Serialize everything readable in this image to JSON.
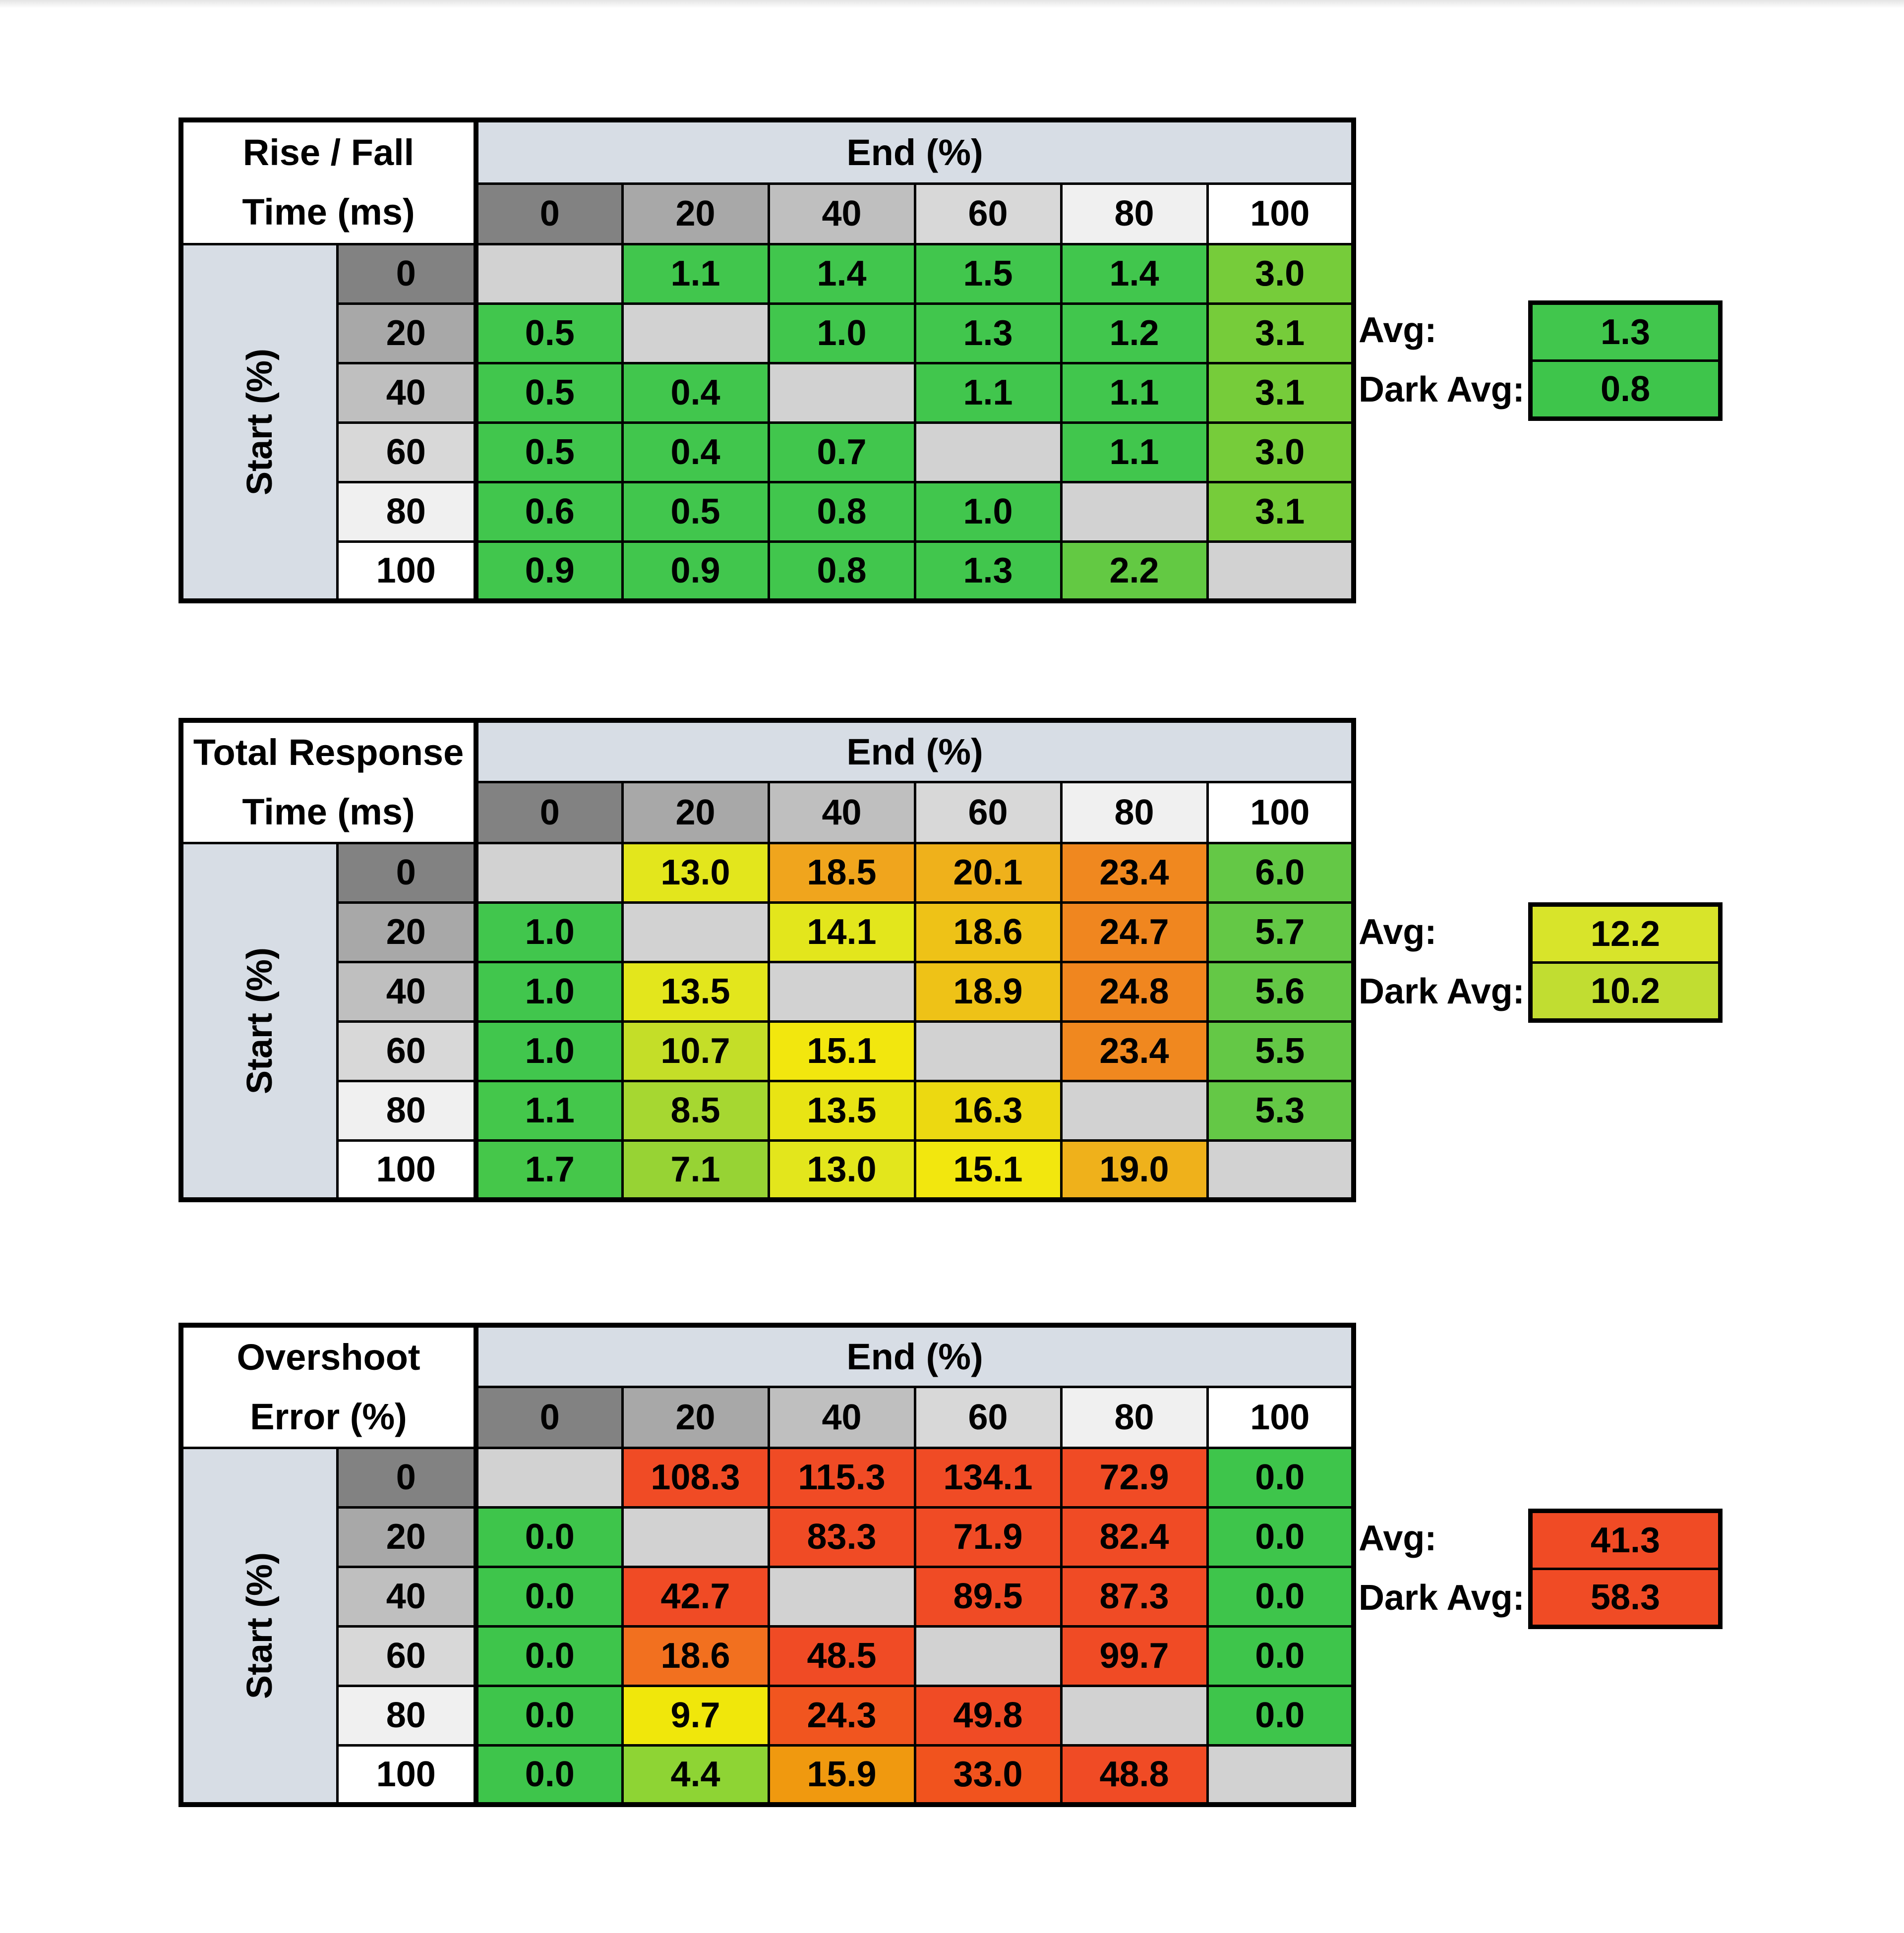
{
  "page": {
    "background": "#FFFFFF",
    "top_edge_color": "#E4E4E4"
  },
  "shared": {
    "header_band_color": "#D7DDE5",
    "axis_band_color": "#D7DDE5",
    "header_gray_scale": [
      "#828282",
      "#A8A8A8",
      "#BFBFBF",
      "#D8D8D8",
      "#F0F0F0",
      "#FFFFFF"
    ],
    "diagonal_color": "#D2D2D2",
    "border_color": "#000000"
  },
  "chart_data": [
    {
      "type": "heatmap",
      "id": "rise-fall-time",
      "title": "Rise / Fall Time (ms)",
      "title_lines": [
        "Rise / Fall",
        "Time (ms)"
      ],
      "xlabel": "End (%)",
      "ylabel": "Start (%)",
      "x_ticks": [
        "0",
        "20",
        "40",
        "60",
        "80",
        "100"
      ],
      "y_ticks": [
        "0",
        "20",
        "40",
        "60",
        "80",
        "100"
      ],
      "values": [
        [
          null,
          1.1,
          1.4,
          1.5,
          1.4,
          3.0
        ],
        [
          0.5,
          null,
          1.0,
          1.3,
          1.2,
          3.1
        ],
        [
          0.5,
          0.4,
          null,
          1.1,
          1.1,
          3.1
        ],
        [
          0.5,
          0.4,
          0.7,
          null,
          1.1,
          3.0
        ],
        [
          0.6,
          0.5,
          0.8,
          1.0,
          null,
          3.1
        ],
        [
          0.9,
          0.9,
          0.8,
          1.3,
          2.2,
          null
        ]
      ],
      "values_display": [
        [
          "",
          "1.1",
          "1.4",
          "1.5",
          "1.4",
          "3.0"
        ],
        [
          "0.5",
          "",
          "1.0",
          "1.3",
          "1.2",
          "3.1"
        ],
        [
          "0.5",
          "0.4",
          "",
          "1.1",
          "1.1",
          "3.1"
        ],
        [
          "0.5",
          "0.4",
          "0.7",
          "",
          "1.1",
          "3.0"
        ],
        [
          "0.6",
          "0.5",
          "0.8",
          "1.0",
          "",
          "3.1"
        ],
        [
          "0.9",
          "0.9",
          "0.8",
          "1.3",
          "2.2",
          ""
        ]
      ],
      "cell_colors": [
        [
          null,
          "#41C64D",
          "#41C64D",
          "#41C64D",
          "#41C64D",
          "#76CC3A"
        ],
        [
          "#41C64D",
          null,
          "#41C64D",
          "#41C64D",
          "#41C64D",
          "#76CC3A"
        ],
        [
          "#41C64D",
          "#41C64D",
          null,
          "#41C64D",
          "#41C64D",
          "#76CC3A"
        ],
        [
          "#41C64D",
          "#41C64D",
          "#41C64D",
          null,
          "#41C64D",
          "#76CC3A"
        ],
        [
          "#41C64D",
          "#41C64D",
          "#41C64D",
          "#41C64D",
          null,
          "#76CC3A"
        ],
        [
          "#41C64D",
          "#41C64D",
          "#41C64D",
          "#41C64D",
          "#63C943",
          null
        ]
      ],
      "avg": {
        "label": "Avg:",
        "value": "1.3",
        "color": "#41C64D"
      },
      "dark_avg": {
        "label": "Dark Avg:",
        "value": "0.8",
        "color": "#3EC54B"
      }
    },
    {
      "type": "heatmap",
      "id": "total-response-time",
      "title": "Total Response Time (ms)",
      "title_lines": [
        "Total Response",
        "Time (ms)"
      ],
      "xlabel": "End (%)",
      "ylabel": "Start (%)",
      "x_ticks": [
        "0",
        "20",
        "40",
        "60",
        "80",
        "100"
      ],
      "y_ticks": [
        "0",
        "20",
        "40",
        "60",
        "80",
        "100"
      ],
      "values": [
        [
          null,
          13.0,
          18.5,
          20.1,
          23.4,
          6.0
        ],
        [
          1.0,
          null,
          14.1,
          18.6,
          24.7,
          5.7
        ],
        [
          1.0,
          13.5,
          null,
          18.9,
          24.8,
          5.6
        ],
        [
          1.0,
          10.7,
          15.1,
          null,
          23.4,
          5.5
        ],
        [
          1.1,
          8.5,
          13.5,
          16.3,
          null,
          5.3
        ],
        [
          1.7,
          7.1,
          13.0,
          15.1,
          19.0,
          null
        ]
      ],
      "values_display": [
        [
          "",
          "13.0",
          "18.5",
          "20.1",
          "23.4",
          "6.0"
        ],
        [
          "1.0",
          "",
          "14.1",
          "18.6",
          "24.7",
          "5.7"
        ],
        [
          "1.0",
          "13.5",
          "",
          "18.9",
          "24.8",
          "5.6"
        ],
        [
          "1.0",
          "10.7",
          "15.1",
          "",
          "23.4",
          "5.5"
        ],
        [
          "1.1",
          "8.5",
          "13.5",
          "16.3",
          "",
          "5.3"
        ],
        [
          "1.7",
          "7.1",
          "13.0",
          "15.1",
          "19.0",
          ""
        ]
      ],
      "cell_colors": [
        [
          null,
          "#E3E61C",
          "#F0A51D",
          "#EFB11B",
          "#F0881F",
          "#64C846"
        ],
        [
          "#41C64D",
          null,
          "#E3E61C",
          "#EEC217",
          "#F0861F",
          "#64C846"
        ],
        [
          "#41C64D",
          "#E3E61C",
          null,
          "#EEC217",
          "#F0861F",
          "#64C846"
        ],
        [
          "#41C64D",
          "#C4DE28",
          "#F2E70E",
          null,
          "#F0881F",
          "#64C846"
        ],
        [
          "#44C74B",
          "#A6D731",
          "#E8E414",
          "#ECD911",
          null,
          "#64C846"
        ],
        [
          "#45C74A",
          "#97D334",
          "#E3E61C",
          "#F2E70E",
          "#EFB11B",
          null
        ]
      ],
      "avg": {
        "label": "Avg:",
        "value": "12.2",
        "color": "#D8E42A"
      },
      "dark_avg": {
        "label": "Dark Avg:",
        "value": "10.2",
        "color": "#C1DD31"
      }
    },
    {
      "type": "heatmap",
      "id": "overshoot-error",
      "title": "Overshoot Error (%)",
      "title_lines": [
        "Overshoot",
        "Error (%)"
      ],
      "xlabel": "End (%)",
      "ylabel": "Start (%)",
      "x_ticks": [
        "0",
        "20",
        "40",
        "60",
        "80",
        "100"
      ],
      "y_ticks": [
        "0",
        "20",
        "40",
        "60",
        "80",
        "100"
      ],
      "values": [
        [
          null,
          108.3,
          115.3,
          134.1,
          72.9,
          0.0
        ],
        [
          0.0,
          null,
          83.3,
          71.9,
          82.4,
          0.0
        ],
        [
          0.0,
          42.7,
          null,
          89.5,
          87.3,
          0.0
        ],
        [
          0.0,
          18.6,
          48.5,
          null,
          99.7,
          0.0
        ],
        [
          0.0,
          9.7,
          24.3,
          49.8,
          null,
          0.0
        ],
        [
          0.0,
          4.4,
          15.9,
          33.0,
          48.8,
          null
        ]
      ],
      "values_display": [
        [
          "",
          "108.3",
          "115.3",
          "134.1",
          "72.9",
          "0.0"
        ],
        [
          "0.0",
          "",
          "83.3",
          "71.9",
          "82.4",
          "0.0"
        ],
        [
          "0.0",
          "42.7",
          "",
          "89.5",
          "87.3",
          "0.0"
        ],
        [
          "0.0",
          "18.6",
          "48.5",
          "",
          "99.7",
          "0.0"
        ],
        [
          "0.0",
          "9.7",
          "24.3",
          "49.8",
          "",
          "0.0"
        ],
        [
          "0.0",
          "4.4",
          "15.9",
          "33.0",
          "48.8",
          ""
        ]
      ],
      "cell_colors": [
        [
          null,
          "#F04B25",
          "#F04B25",
          "#F04B25",
          "#F04B25",
          "#3EC54B"
        ],
        [
          "#3EC54B",
          null,
          "#F04B25",
          "#F04B25",
          "#F04B25",
          "#3EC54B"
        ],
        [
          "#3EC54B",
          "#F04B25",
          null,
          "#F04B25",
          "#F04B25",
          "#3EC54B"
        ],
        [
          "#3EC54B",
          "#F2701F",
          "#F04B25",
          null,
          "#F04B25",
          "#3EC54B"
        ],
        [
          "#3EC54B",
          "#F0E70B",
          "#F1551F",
          "#F04B25",
          null,
          "#3EC54B"
        ],
        [
          "#3EC54B",
          "#8ED434",
          "#F0990F",
          "#F1531E",
          "#F04B25",
          null
        ]
      ],
      "avg": {
        "label": "Avg:",
        "value": "41.3",
        "color": "#F04B25"
      },
      "dark_avg": {
        "label": "Dark Avg:",
        "value": "58.3",
        "color": "#F04B25"
      }
    }
  ]
}
